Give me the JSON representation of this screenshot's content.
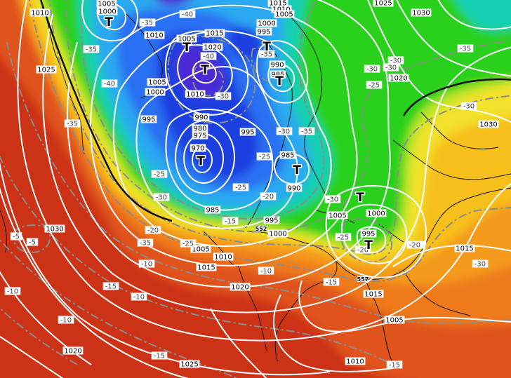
{
  "colors": {
    "ocean_dark_red": "#a81d14",
    "red": "#cc3318",
    "orange_red": "#e0521c",
    "orange": "#ee7a1e",
    "orange_light": "#f49a1c",
    "yellow_orange": "#f7bf1a",
    "yellow": "#f3e12a",
    "yellow_green": "#b9e52b",
    "green": "#2bd11d",
    "cyan": "#17cfb1",
    "light_blue": "#29a9f0",
    "blue": "#2a6ff2",
    "dark_blue": "#1b3fe0",
    "purple": "#4b2cd6",
    "isobar": "#ffffff",
    "isotherm": "#8c8c8c",
    "coast": "#111111"
  },
  "pressure_labels": [
    {
      "text": "1010"
    },
    {
      "text": "1005"
    },
    {
      "text": "1000"
    },
    {
      "text": "1010"
    },
    {
      "text": "1005"
    },
    {
      "text": "1015"
    },
    {
      "text": "1020"
    },
    {
      "text": "1010"
    },
    {
      "text": "1005"
    },
    {
      "text": "1000"
    },
    {
      "text": "995"
    },
    {
      "text": "985"
    },
    {
      "text": "1015"
    },
    {
      "text": "1010"
    },
    {
      "text": "1005"
    },
    {
      "text": "1000"
    },
    {
      "text": "990"
    },
    {
      "text": "1025"
    },
    {
      "text": "1030"
    },
    {
      "text": "1025"
    },
    {
      "text": "1020"
    },
    {
      "text": "1030"
    },
    {
      "text": "995"
    },
    {
      "text": "990"
    },
    {
      "text": "980"
    },
    {
      "text": "975"
    },
    {
      "text": "970"
    },
    {
      "text": "995"
    },
    {
      "text": "985"
    },
    {
      "text": "990"
    },
    {
      "text": "985"
    },
    {
      "text": "995"
    },
    {
      "text": "1000"
    },
    {
      "text": "1005"
    },
    {
      "text": "1000"
    },
    {
      "text": "995"
    },
    {
      "text": "1030"
    },
    {
      "text": "1005"
    },
    {
      "text": "1010"
    },
    {
      "text": "1015"
    },
    {
      "text": "1020"
    },
    {
      "text": "1015"
    },
    {
      "text": "1005"
    },
    {
      "text": "1010"
    },
    {
      "text": "1020"
    },
    {
      "text": "1025"
    },
    {
      "text": "1015"
    }
  ],
  "temperature_labels": [
    {
      "text": "-40"
    },
    {
      "text": "-35"
    },
    {
      "text": "-35"
    },
    {
      "text": "-40"
    },
    {
      "text": "-40"
    },
    {
      "text": "-35"
    },
    {
      "text": "-35"
    },
    {
      "text": "-30"
    },
    {
      "text": "-30"
    },
    {
      "text": "-35"
    },
    {
      "text": "-30"
    },
    {
      "text": "-30"
    },
    {
      "text": "-25"
    },
    {
      "text": "-25"
    },
    {
      "text": "-30"
    },
    {
      "text": "-20"
    },
    {
      "text": "-30"
    },
    {
      "text": "-35"
    },
    {
      "text": "-30"
    },
    {
      "text": "-30"
    },
    {
      "text": "-25"
    },
    {
      "text": "-25"
    },
    {
      "text": "-25"
    },
    {
      "text": "-30"
    },
    {
      "text": "-35"
    },
    {
      "text": "-25"
    },
    {
      "text": "-20"
    },
    {
      "text": "-20"
    },
    {
      "text": "-15"
    },
    {
      "text": "-15"
    },
    {
      "text": "-25"
    },
    {
      "text": "-20"
    },
    {
      "text": "-10"
    },
    {
      "text": "-10"
    },
    {
      "text": "-15"
    },
    {
      "text": "-5"
    },
    {
      "text": "-5"
    },
    {
      "text": "-10"
    },
    {
      "text": "-10"
    },
    {
      "text": "-10"
    },
    {
      "text": "-15"
    },
    {
      "text": "-15"
    }
  ],
  "low_markers": [
    {
      "text": "T"
    },
    {
      "text": "T"
    },
    {
      "text": "T"
    },
    {
      "text": "T"
    },
    {
      "text": "T"
    },
    {
      "text": "T"
    },
    {
      "text": "T"
    },
    {
      "text": "T"
    },
    {
      "text": "T"
    }
  ],
  "small_labels": [
    {
      "text": "552"
    },
    {
      "text": "557"
    }
  ]
}
